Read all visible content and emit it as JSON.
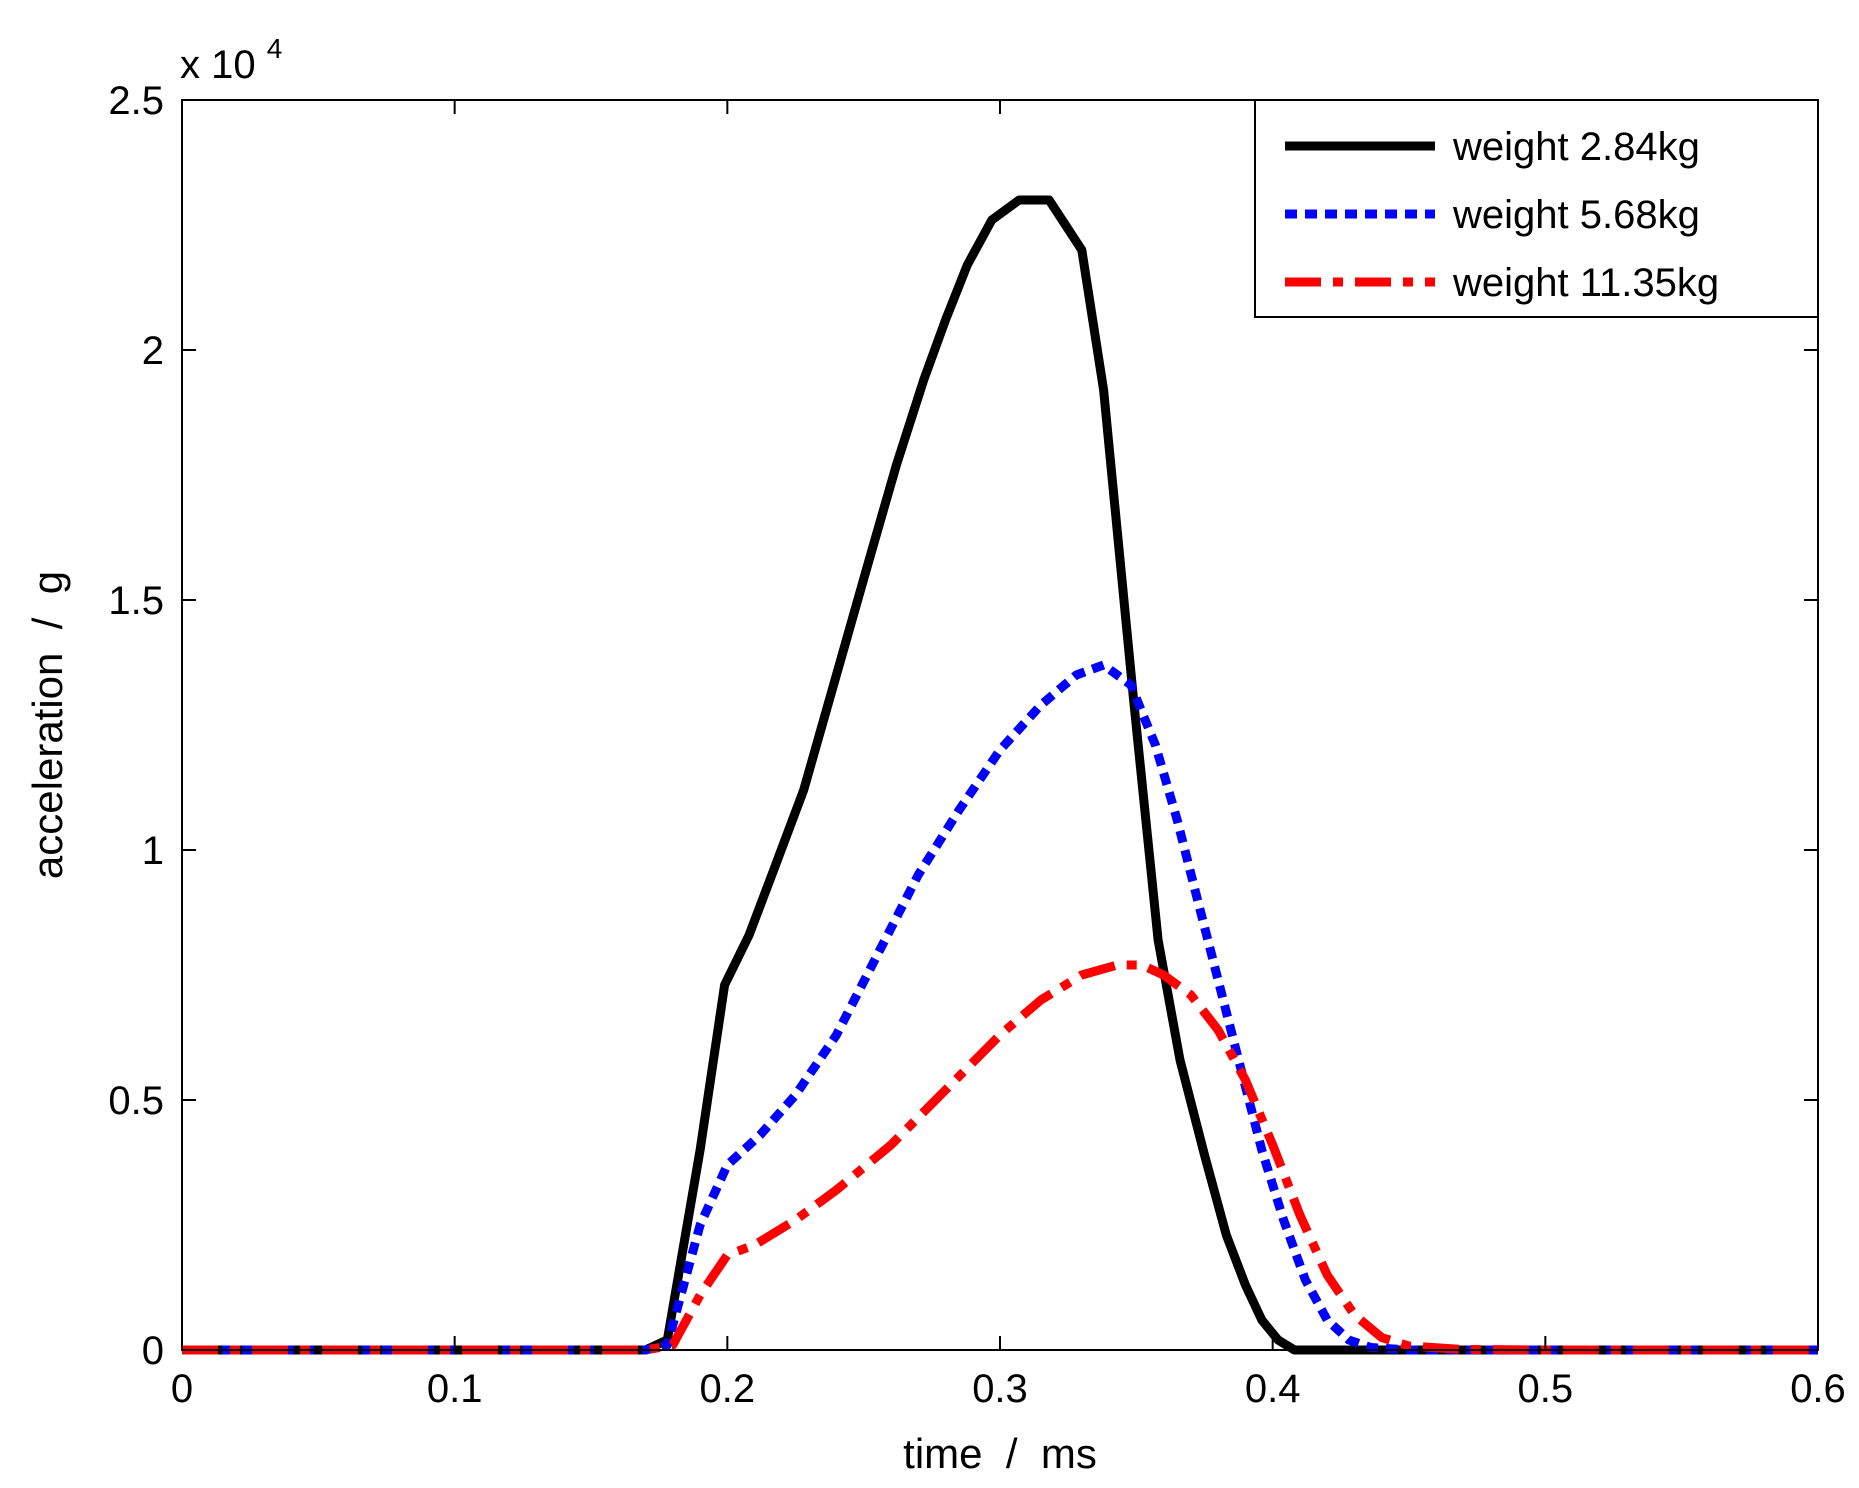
{
  "chart_data": {
    "type": "line",
    "title": "",
    "xlabel": "time  /  ms",
    "ylabel": "acceleration  /  g",
    "xlim": [
      0,
      0.6
    ],
    "ylim": [
      0,
      25000
    ],
    "x_ticks": [
      0,
      0.1,
      0.2,
      0.3,
      0.4,
      0.5,
      0.6
    ],
    "x_tick_labels": [
      "0",
      "0.1",
      "0.2",
      "0.3",
      "0.4",
      "0.5",
      "0.6"
    ],
    "y_ticks": [
      0,
      5000,
      10000,
      15000,
      20000,
      25000
    ],
    "y_tick_labels": [
      "0",
      "0.5",
      "1",
      "1.5",
      "2",
      "2.5"
    ],
    "y_scale_label": "x 10",
    "y_scale_exponent": "4",
    "grid": false,
    "legend_position": "top-right",
    "series": [
      {
        "name": "weight 2.84kg",
        "color": "#000000",
        "style": "solid",
        "x": [
          0,
          0.17,
          0.178,
          0.19,
          0.199,
          0.208,
          0.217,
          0.228,
          0.24,
          0.252,
          0.262,
          0.272,
          0.28,
          0.288,
          0.297,
          0.307,
          0.318,
          0.33,
          0.338,
          0.349,
          0.358,
          0.366,
          0.375,
          0.383,
          0.39,
          0.396,
          0.402,
          0.408,
          0.42,
          0.44,
          0.5,
          0.6
        ],
        "y": [
          0,
          0,
          200,
          4000,
          7300,
          8300,
          9600,
          11200,
          13500,
          15800,
          17700,
          19400,
          20600,
          21700,
          22600,
          23000,
          23000,
          22000,
          19200,
          13000,
          8200,
          5800,
          3900,
          2300,
          1300,
          600,
          200,
          0,
          0,
          0,
          0,
          0
        ]
      },
      {
        "name": "weight 5.68kg",
        "color": "#0000ff",
        "style": "dotted",
        "x": [
          0,
          0.17,
          0.178,
          0.19,
          0.2,
          0.212,
          0.225,
          0.24,
          0.255,
          0.27,
          0.285,
          0.3,
          0.315,
          0.328,
          0.338,
          0.348,
          0.357,
          0.365,
          0.372,
          0.38,
          0.388,
          0.396,
          0.404,
          0.412,
          0.42,
          0.428,
          0.436,
          0.45,
          0.5,
          0.6
        ],
        "y": [
          0,
          0,
          100,
          2500,
          3700,
          4300,
          5100,
          6300,
          7900,
          9500,
          10800,
          12000,
          12900,
          13500,
          13700,
          13300,
          12100,
          10600,
          9100,
          7400,
          5700,
          4000,
          2600,
          1400,
          600,
          200,
          50,
          0,
          0,
          0
        ]
      },
      {
        "name": "weight 11.35kg",
        "color": "#ff0000",
        "style": "dashdot",
        "x": [
          0,
          0.17,
          0.18,
          0.19,
          0.2,
          0.21,
          0.225,
          0.24,
          0.26,
          0.28,
          0.3,
          0.315,
          0.33,
          0.343,
          0.352,
          0.36,
          0.37,
          0.38,
          0.39,
          0.4,
          0.41,
          0.42,
          0.43,
          0.44,
          0.45,
          0.47,
          0.5,
          0.6
        ],
        "y": [
          0,
          0,
          100,
          1100,
          1900,
          2100,
          2600,
          3200,
          4100,
          5200,
          6300,
          7000,
          7500,
          7700,
          7700,
          7500,
          7100,
          6400,
          5400,
          4100,
          2700,
          1500,
          700,
          250,
          80,
          10,
          0,
          0
        ]
      }
    ]
  }
}
